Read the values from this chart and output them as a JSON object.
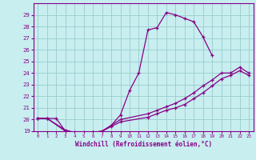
{
  "xlabel": "Windchill (Refroidissement éolien,°C)",
  "background_color": "#c8eef0",
  "line_color": "#880088",
  "grid_color": "#99cccc",
  "xlim": [
    -0.5,
    23.5
  ],
  "ylim": [
    19,
    30
  ],
  "yticks": [
    19,
    20,
    21,
    22,
    23,
    24,
    25,
    26,
    27,
    28,
    29
  ],
  "xticks": [
    0,
    1,
    2,
    3,
    4,
    5,
    6,
    7,
    8,
    9,
    10,
    11,
    12,
    13,
    14,
    15,
    16,
    17,
    18,
    19,
    20,
    21,
    22,
    23
  ],
  "lines": [
    {
      "x": [
        0,
        1,
        2,
        3,
        4,
        5,
        6,
        7,
        8,
        9,
        10,
        11,
        12,
        13,
        14,
        15,
        16,
        17,
        18,
        19
      ],
      "y": [
        20.1,
        20.1,
        20.1,
        19.0,
        18.8,
        18.8,
        18.9,
        19.0,
        19.5,
        20.4,
        22.5,
        24.0,
        27.7,
        27.9,
        29.2,
        29.0,
        28.7,
        28.4,
        27.1,
        25.5
      ]
    },
    {
      "x": [
        0,
        1,
        3,
        4,
        5,
        6,
        7,
        8,
        9,
        12,
        13,
        14,
        15,
        16,
        17,
        18,
        19,
        20,
        21,
        22,
        23
      ],
      "y": [
        20.1,
        20.1,
        19.0,
        18.8,
        18.8,
        18.9,
        19.0,
        19.5,
        20.0,
        20.5,
        20.8,
        21.1,
        21.4,
        21.8,
        22.3,
        22.9,
        23.4,
        24.0,
        24.0,
        24.5,
        24.0
      ]
    },
    {
      "x": [
        0,
        1,
        3,
        4,
        5,
        6,
        7,
        8,
        9,
        12,
        13,
        14,
        15,
        16,
        17,
        18,
        19,
        20,
        21,
        22,
        23
      ],
      "y": [
        20.1,
        20.1,
        19.1,
        18.9,
        18.9,
        18.9,
        19.0,
        19.4,
        19.8,
        20.2,
        20.5,
        20.8,
        21.0,
        21.3,
        21.8,
        22.3,
        22.9,
        23.5,
        23.8,
        24.2,
        23.8
      ]
    }
  ]
}
